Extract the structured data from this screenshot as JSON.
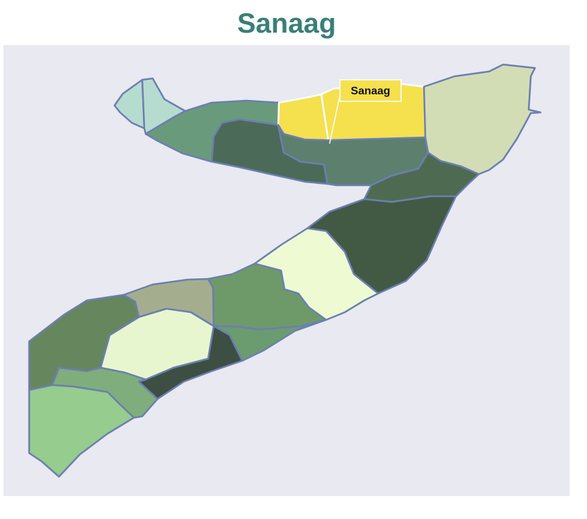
{
  "title": "Sanaag",
  "colors": {
    "title": "#3a7f78",
    "background": "#e9e9f1",
    "border": "#6b7fb0",
    "highlight": "#f5e04e",
    "tooltip_border": "#d8c13a"
  },
  "tooltip": {
    "text": "Sanaag"
  },
  "regions": [
    {
      "id": "awdal-a",
      "fill": "#b6dccf"
    },
    {
      "id": "awdal-b",
      "fill": "#b6dccf"
    },
    {
      "id": "woqooyi-galbeed",
      "fill": "#6a9a7c"
    },
    {
      "id": "togdheer",
      "fill": "#4c6a58"
    },
    {
      "id": "sanaag",
      "fill": "#f5e04e",
      "highlighted": true
    },
    {
      "id": "sanaag-west",
      "fill": "#f5e04e",
      "highlighted": true
    },
    {
      "id": "sool",
      "fill": "#5c7f6e"
    },
    {
      "id": "bari",
      "fill": "#d3ddb5"
    },
    {
      "id": "nugaal",
      "fill": "#4e6b52"
    },
    {
      "id": "mudug",
      "fill": "#425a44"
    },
    {
      "id": "galguduud",
      "fill": "#eefad2"
    },
    {
      "id": "hiiraan",
      "fill": "#6e9a6a"
    },
    {
      "id": "bakool",
      "fill": "#a4ae8e"
    },
    {
      "id": "middle-shabelle",
      "fill": "#6b9c6f"
    },
    {
      "id": "bay",
      "fill": "#e8f6cf"
    },
    {
      "id": "banadir-lower-shabelle",
      "fill": "#3d4f42"
    },
    {
      "id": "gedo",
      "fill": "#66865e"
    },
    {
      "id": "middle-juba",
      "fill": "#7fae7c"
    },
    {
      "id": "lower-juba",
      "fill": "#96cc8e"
    }
  ]
}
